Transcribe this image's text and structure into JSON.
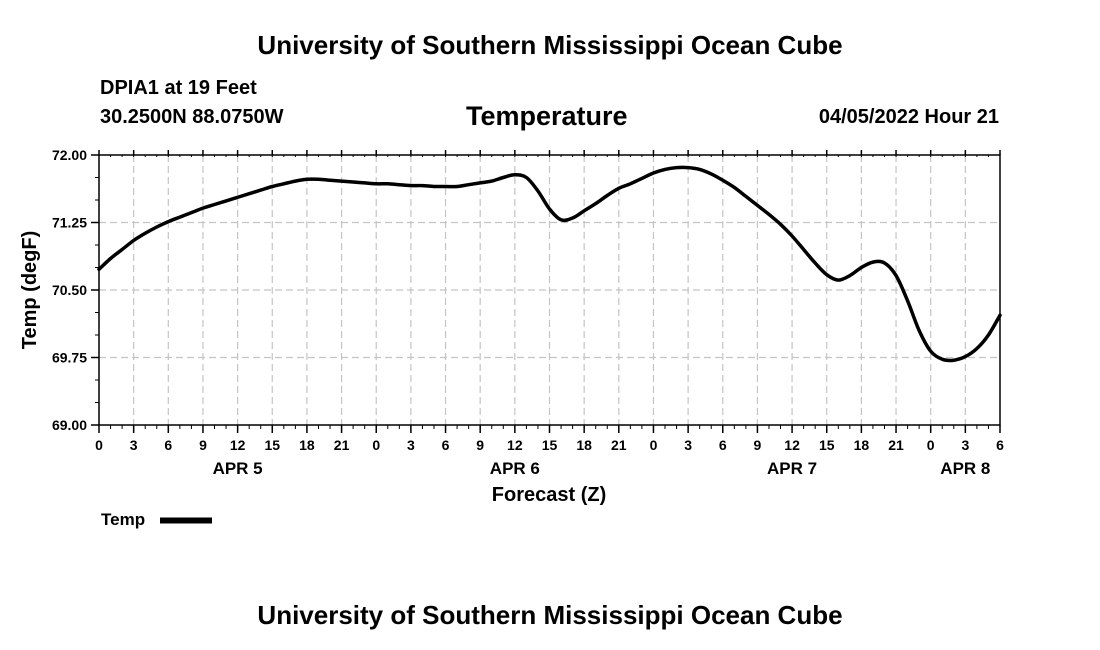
{
  "header": {
    "title": "University of Southern Mississippi Ocean Cube",
    "station": "DPIA1 at 19 Feet",
    "coords": "30.2500N  88.0750W",
    "timestamp": "04/05/2022 Hour 21"
  },
  "footer": {
    "title": "University of Southern Mississippi Ocean Cube"
  },
  "chart_data": {
    "type": "line",
    "title": "Temperature",
    "xlabel": "Forecast (Z)",
    "ylabel": "Temp (degF)",
    "x_range_hours": [
      0,
      78
    ],
    "ylim": [
      69.0,
      72.0
    ],
    "y_ticks": [
      "72.00",
      "71.25",
      "70.50",
      "69.75",
      "69.00"
    ],
    "y_tick_values": [
      72.0,
      71.25,
      70.5,
      69.75,
      69.0
    ],
    "x_tick_labels": [
      "0",
      "3",
      "6",
      "9",
      "12",
      "15",
      "18",
      "21",
      "0",
      "3",
      "6",
      "9",
      "12",
      "15",
      "18",
      "21",
      "0",
      "3",
      "6",
      "9",
      "12",
      "15",
      "18",
      "21",
      "0",
      "3",
      "6"
    ],
    "day_labels": [
      {
        "label": "APR 5",
        "hour": 12
      },
      {
        "label": "APR 6",
        "hour": 36
      },
      {
        "label": "APR 7",
        "hour": 60
      },
      {
        "label": "APR 8",
        "hour": 75
      }
    ],
    "grid": true,
    "legend": {
      "label": "Temp",
      "placement": "bottom-left"
    },
    "series": [
      {
        "name": "Temp",
        "color": "#000000",
        "x": [
          0,
          1,
          2,
          3,
          4,
          5,
          6,
          7,
          8,
          9,
          10,
          11,
          12,
          13,
          14,
          15,
          16,
          17,
          18,
          19,
          20,
          21,
          22,
          23,
          24,
          25,
          26,
          27,
          28,
          29,
          30,
          31,
          32,
          33,
          34,
          35,
          36,
          37,
          38,
          39,
          40,
          41,
          42,
          43,
          44,
          45,
          46,
          47,
          48,
          49,
          50,
          51,
          52,
          53,
          54,
          55,
          56,
          57,
          58,
          59,
          60,
          61,
          62,
          63,
          64,
          65,
          66,
          67,
          68,
          69,
          70,
          71,
          72,
          73,
          74,
          75,
          76,
          77,
          78
        ],
        "y": [
          70.73,
          70.85,
          70.95,
          71.05,
          71.13,
          71.2,
          71.26,
          71.31,
          71.36,
          71.41,
          71.45,
          71.49,
          71.53,
          71.57,
          71.61,
          71.65,
          71.68,
          71.71,
          71.73,
          71.73,
          71.72,
          71.71,
          71.7,
          71.69,
          71.68,
          71.68,
          71.67,
          71.66,
          71.66,
          71.65,
          71.65,
          71.65,
          71.67,
          71.69,
          71.71,
          71.75,
          71.78,
          71.75,
          71.6,
          71.4,
          71.28,
          71.3,
          71.38,
          71.46,
          71.55,
          71.63,
          71.68,
          71.74,
          71.8,
          71.84,
          71.86,
          71.86,
          71.84,
          71.79,
          71.72,
          71.64,
          71.54,
          71.44,
          71.34,
          71.23,
          71.1,
          70.95,
          70.8,
          70.67,
          70.61,
          70.66,
          70.75,
          70.81,
          70.8,
          70.66,
          70.38,
          70.05,
          69.82,
          69.73,
          69.72,
          69.76,
          69.85,
          70.0,
          70.22
        ]
      }
    ]
  }
}
